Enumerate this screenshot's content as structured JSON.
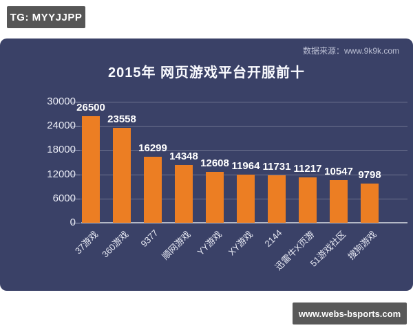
{
  "badges": {
    "tg": "TG: MYYJJPP",
    "site": "www.webs-bsports.com"
  },
  "chart_data": {
    "type": "bar",
    "title": "2015年 网页游戏平台开服前十",
    "source_note": "数据来源：www.9k9k.com",
    "categories": [
      "37游戏",
      "360游戏",
      "9377",
      "顺网游戏",
      "YY游戏",
      "XY游戏",
      "2144",
      "迅雷牛X页游",
      "51游戏社区",
      "搜狗游戏"
    ],
    "values": [
      26500,
      23558,
      16299,
      14348,
      12608,
      11964,
      11731,
      11217,
      10547,
      9798
    ],
    "xlabel": "",
    "ylabel": "",
    "ylim": [
      0,
      30000
    ],
    "yticks": [
      0,
      6000,
      12000,
      18000,
      24000,
      30000
    ],
    "grid": "horizontal",
    "legend": "none",
    "bar_color": "#EC7E23",
    "panel_bg": "#3A4167",
    "value_labels": "above bars",
    "x_label_rotation": -45
  }
}
